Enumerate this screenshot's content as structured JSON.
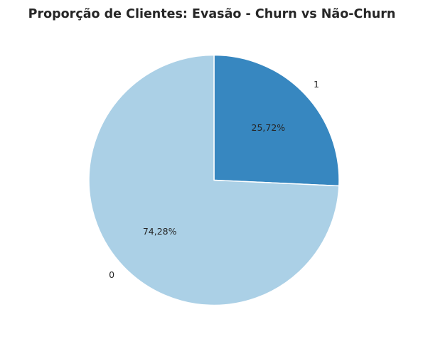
{
  "chart_data": {
    "type": "pie",
    "title": "Proporção de Clientes: Evasão - Churn vs Não-Churn",
    "categories": [
      "0",
      "1"
    ],
    "values": [
      74.28,
      25.72
    ],
    "percent_labels": [
      "74,28%",
      "25,72%"
    ],
    "colors": [
      "#abd0e6",
      "#3787c0"
    ],
    "edge_color": "#ffffff",
    "start_angle_deg": 90,
    "direction": "clockwise",
    "legend": "none"
  }
}
